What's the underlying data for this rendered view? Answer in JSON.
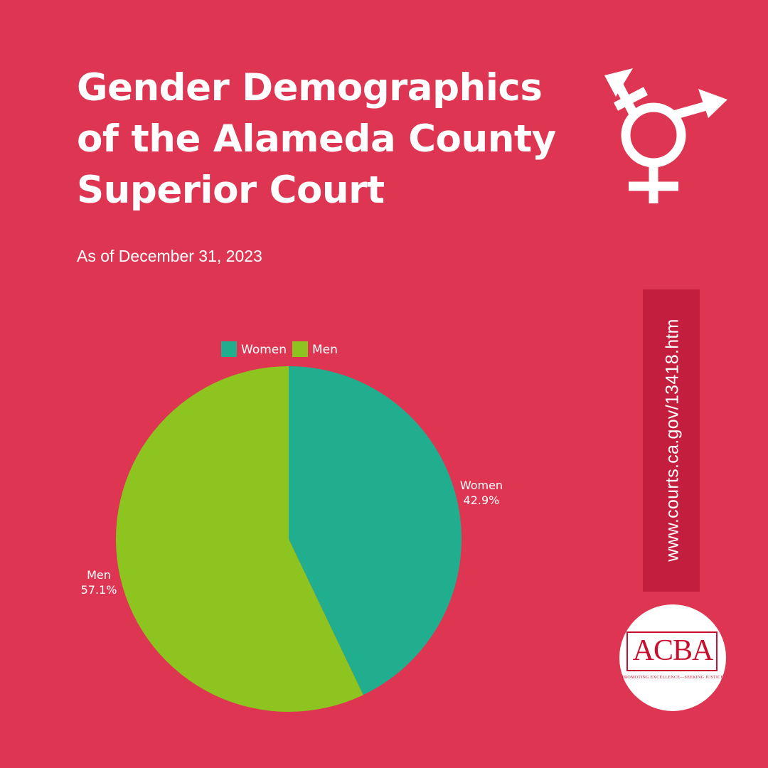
{
  "title_lines": [
    "Gender Demographics",
    "of the Alameda County",
    "Superior Court"
  ],
  "subtitle": "As of December 31, 2023",
  "source_url": "www.courts.ca.gov/13418.htm",
  "logo": {
    "name": "ACBA",
    "tagline": "PROMOTING EXCELLENCE—SEEKING JUSTICE"
  },
  "icons": {
    "gender_symbol": "transgender-symbol-icon"
  },
  "colors": {
    "background": "#DE3652",
    "banner": "#C31E3D",
    "women": "#21AE8F",
    "men": "#8DC420"
  },
  "chart_data": {
    "type": "pie",
    "title": "",
    "legend_position": "top",
    "slices": [
      {
        "label": "Women",
        "value": 42.9,
        "display": "42.9%",
        "color": "#21AE8F"
      },
      {
        "label": "Men",
        "value": 57.1,
        "display": "57.1%",
        "color": "#8DC420"
      }
    ]
  }
}
